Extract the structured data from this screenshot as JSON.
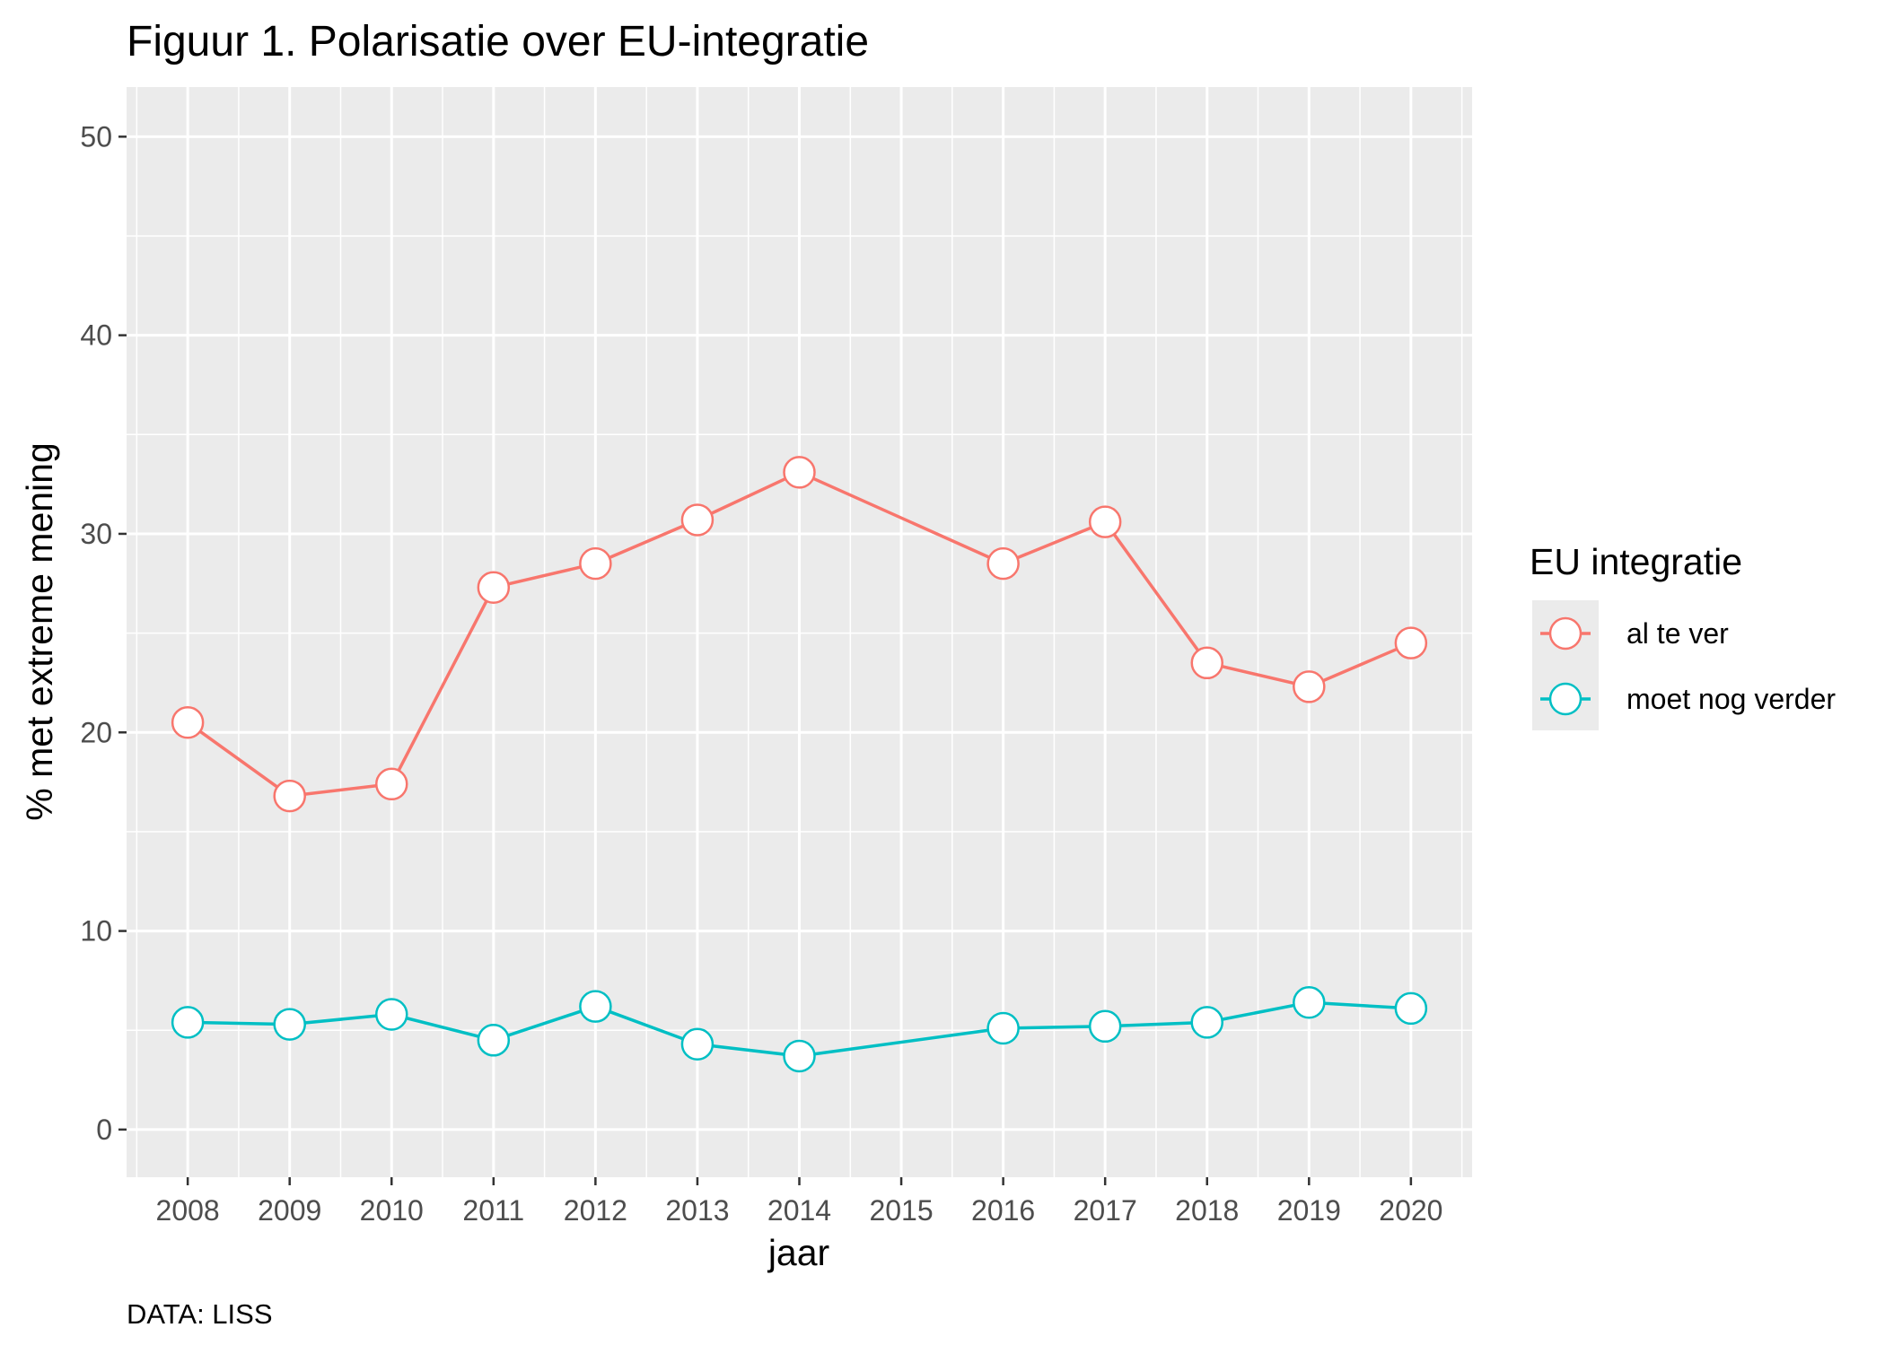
{
  "chart_data": {
    "type": "line",
    "title": "Figuur 1. Polarisatie over EU-integratie",
    "xlabel": "jaar",
    "ylabel": "% met extreme mening",
    "caption": "DATA: LISS",
    "x_ticks": [
      2008,
      2009,
      2010,
      2011,
      2012,
      2013,
      2014,
      2015,
      2016,
      2017,
      2018,
      2019,
      2020
    ],
    "xlim": [
      2007.4,
      2020.6
    ],
    "y_ticks": [
      0,
      10,
      20,
      30,
      40,
      50
    ],
    "ylim": [
      -2.4,
      52.5
    ],
    "grid": true,
    "legend": {
      "title": "EU integratie",
      "position": "right"
    },
    "series": [
      {
        "name": "al te ver",
        "color": "#F8766D",
        "points": [
          {
            "x": 2008,
            "y": 20.5
          },
          {
            "x": 2009,
            "y": 16.8
          },
          {
            "x": 2010,
            "y": 17.4
          },
          {
            "x": 2011,
            "y": 27.3
          },
          {
            "x": 2012,
            "y": 28.5
          },
          {
            "x": 2013,
            "y": 30.7
          },
          {
            "x": 2014,
            "y": 33.1
          },
          {
            "x": 2016,
            "y": 28.5
          },
          {
            "x": 2017,
            "y": 30.6
          },
          {
            "x": 2018,
            "y": 23.5
          },
          {
            "x": 2019,
            "y": 22.3
          },
          {
            "x": 2020,
            "y": 24.5
          }
        ]
      },
      {
        "name": "moet nog verder",
        "color": "#00BFC4",
        "points": [
          {
            "x": 2008,
            "y": 5.4
          },
          {
            "x": 2009,
            "y": 5.3
          },
          {
            "x": 2010,
            "y": 5.8
          },
          {
            "x": 2011,
            "y": 4.5
          },
          {
            "x": 2012,
            "y": 6.2
          },
          {
            "x": 2013,
            "y": 4.3
          },
          {
            "x": 2014,
            "y": 3.7
          },
          {
            "x": 2016,
            "y": 5.1
          },
          {
            "x": 2017,
            "y": 5.2
          },
          {
            "x": 2018,
            "y": 5.4
          },
          {
            "x": 2019,
            "y": 6.4
          },
          {
            "x": 2020,
            "y": 6.1
          }
        ]
      }
    ]
  }
}
